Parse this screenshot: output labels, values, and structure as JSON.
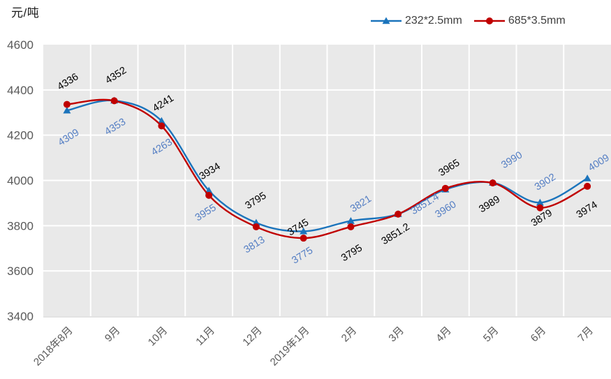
{
  "chart_data": {
    "type": "line",
    "title": "元/吨",
    "categories": [
      "2018年8月",
      "9月",
      "10月",
      "11月",
      "12月",
      "2019年1月",
      "2月",
      "3月",
      "4月",
      "5月",
      "6月",
      "7月"
    ],
    "series": [
      {
        "name": "232*2.5mm",
        "color": "#1B74BC",
        "marker": "triangle",
        "label_color": "#557FC4",
        "values": [
          4309,
          4353,
          4263,
          3955,
          3813,
          3775,
          3821,
          3851.4,
          3960,
          3990,
          3902,
          4009
        ],
        "label_offsets": [
          [
            2,
            38
          ],
          [
            1,
            37
          ],
          [
            0,
            37
          ],
          [
            -5,
            31
          ],
          [
            -3,
            31
          ],
          [
            -2,
            34
          ],
          [
            14,
            -25
          ],
          [
            38,
            -15
          ],
          [
            0,
            28
          ],
          [
            27,
            -33
          ],
          [
            7,
            -30
          ],
          [
            16,
            -23
          ]
        ]
      },
      {
        "name": "685*3.5mm",
        "color": "#C00000",
        "marker": "circle",
        "label_color": "#000000",
        "values": [
          4336,
          4352,
          4241,
          3934,
          3795,
          3745,
          3795,
          3851.2,
          3965,
          3989,
          3879,
          3974
        ],
        "label_offsets": [
          [
            1,
            -33
          ],
          [
            2,
            -37
          ],
          [
            2,
            -33
          ],
          [
            1,
            -35
          ],
          [
            -1,
            -38
          ],
          [
            -8,
            -16
          ],
          [
            1,
            37
          ],
          [
            -4,
            28
          ],
          [
            5,
            -30
          ],
          [
            -5,
            30
          ],
          [
            2,
            14
          ],
          [
            -1,
            33
          ]
        ]
      }
    ],
    "ylim": [
      3400,
      4600
    ],
    "y_tick_step": 200,
    "y_tick_labels": [
      "4600",
      "4400",
      "4200",
      "4000",
      "3800",
      "3600",
      "3400"
    ],
    "grid": true,
    "legend_position": "top-right",
    "plot_bg_color": "#E9E9E9",
    "grid_color": "#FFFFFF",
    "axis_line_color": "#D9D9D9",
    "axis_text_color": "#595959",
    "x_label_rotation": -45,
    "data_label_rotation": -32
  }
}
